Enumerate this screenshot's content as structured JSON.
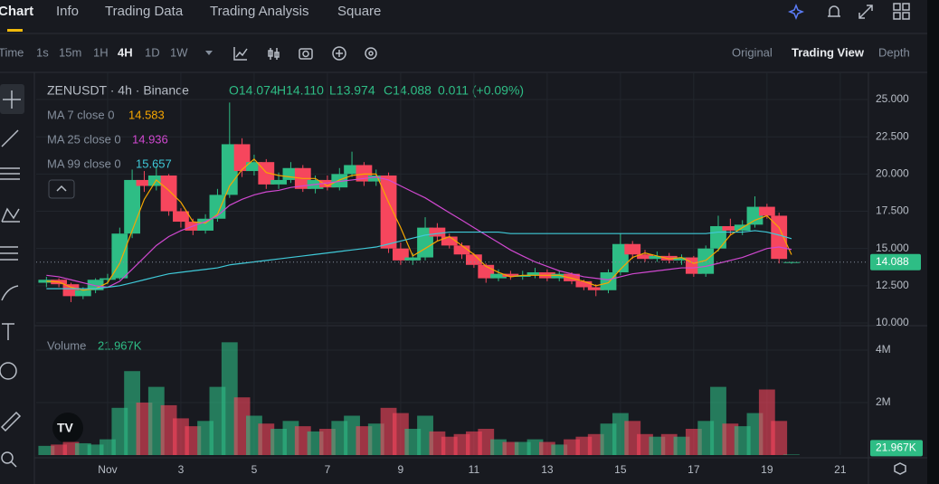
{
  "nav": {
    "tabs": [
      "Chart",
      "Info",
      "Trading Data",
      "Trading Analysis",
      "Square"
    ]
  },
  "toolbar": {
    "intervals": [
      "Time",
      "1s",
      "15m",
      "1H",
      "4H",
      "1D",
      "1W"
    ],
    "views": [
      "Original",
      "Trading View",
      "Depth"
    ]
  },
  "chart_data": {
    "type": "candlestick",
    "title": "ZENUSDT · 4h · Binance",
    "ohlc_text": [
      "O14.074",
      "H14.110",
      "L13.974",
      "C14.088",
      "0.011 (+0.09%)"
    ],
    "up_color": "#2ebd85",
    "down_color": "#f6465d",
    "grid": true,
    "x": [
      -0.67,
      -0.33,
      0,
      0.33,
      0.67,
      1,
      1.33,
      1.67,
      2,
      2.33,
      2.67,
      3,
      3.33,
      3.67,
      4,
      4.33,
      4.67,
      5,
      5.33,
      5.67,
      6,
      6.33,
      6.67,
      7,
      7.33,
      7.67,
      8,
      8.33,
      8.67,
      9,
      9.33,
      9.67,
      10,
      10.33,
      10.67,
      11,
      11.33,
      11.67,
      12,
      12.33,
      12.67,
      13,
      13.33,
      13.67,
      14,
      14.33,
      14.67,
      15,
      15.33,
      15.67,
      16,
      16.33,
      16.67,
      17,
      17.33,
      17.67,
      18,
      18.33,
      18.67,
      19,
      19.33,
      19.67
    ],
    "open": [
      12.7,
      12.9,
      12.6,
      11.8,
      12.2,
      12.9,
      13.0,
      16.0,
      19.6,
      19.2,
      19.9,
      17.5,
      16.8,
      16.2,
      17.0,
      18.6,
      22.0,
      20.2,
      20.8,
      19.3,
      19.6,
      20.4,
      19.0,
      19.6,
      19.1,
      20.0,
      20.6,
      19.5,
      19.9,
      15.0,
      14.2,
      14.4,
      16.4,
      15.8,
      15.2,
      14.6,
      13.9,
      13.0,
      13.3,
      13.1,
      13.2,
      13.4,
      13.0,
      13.3,
      12.8,
      12.4,
      12.2,
      13.4,
      15.3,
      14.6,
      14.3,
      14.5,
      14.2,
      14.4,
      13.3,
      15.0,
      16.5,
      16.2,
      16.6,
      17.8,
      17.2,
      14.074
    ],
    "high": [
      13.1,
      13.0,
      12.7,
      12.4,
      13.0,
      13.3,
      16.4,
      20.3,
      20.2,
      20.5,
      20.0,
      17.7,
      17.0,
      17.3,
      19.0,
      24.8,
      22.4,
      21.3,
      21.0,
      20.1,
      20.8,
      20.6,
      19.9,
      19.9,
      20.4,
      21.5,
      20.8,
      20.3,
      20.1,
      15.4,
      14.7,
      17.1,
      16.7,
      16.0,
      15.4,
      14.7,
      14.0,
      13.6,
      13.5,
      13.5,
      13.7,
      13.6,
      13.5,
      13.4,
      12.9,
      12.6,
      13.6,
      16.0,
      15.5,
      14.9,
      14.8,
      14.7,
      14.6,
      14.5,
      15.2,
      17.2,
      17.0,
      16.9,
      18.5,
      18.0,
      17.4,
      14.11
    ],
    "low": [
      12.4,
      12.4,
      11.4,
      11.6,
      12.0,
      12.6,
      12.9,
      15.7,
      18.8,
      18.9,
      17.2,
      16.4,
      15.9,
      16.0,
      16.8,
      18.4,
      19.8,
      19.9,
      19.0,
      19.0,
      19.4,
      18.8,
      18.7,
      18.9,
      18.9,
      19.8,
      19.2,
      19.2,
      14.7,
      13.9,
      13.9,
      14.2,
      15.5,
      15.0,
      14.3,
      13.7,
      12.7,
      12.8,
      12.9,
      12.9,
      13.0,
      12.8,
      12.8,
      12.6,
      12.2,
      11.8,
      12.0,
      13.2,
      14.3,
      14.1,
      14.1,
      14.0,
      13.9,
      13.1,
      13.1,
      14.8,
      15.9,
      15.9,
      16.4,
      17.0,
      14.0,
      13.974
    ],
    "close": [
      12.9,
      12.6,
      11.8,
      12.2,
      12.9,
      13.0,
      16.0,
      19.6,
      19.2,
      19.9,
      17.5,
      16.8,
      16.2,
      17.0,
      18.6,
      22.0,
      20.2,
      20.8,
      19.3,
      19.6,
      20.4,
      19.0,
      19.6,
      19.1,
      20.0,
      20.6,
      19.5,
      19.9,
      15.0,
      14.2,
      14.4,
      16.4,
      15.8,
      15.2,
      14.6,
      13.9,
      13.0,
      13.3,
      13.1,
      13.2,
      13.4,
      13.0,
      13.3,
      12.8,
      12.4,
      12.2,
      13.4,
      15.3,
      14.6,
      14.3,
      14.5,
      14.2,
      14.4,
      13.3,
      15.0,
      16.5,
      16.2,
      16.6,
      17.8,
      17.2,
      14.3,
      14.088
    ],
    "xlim": [
      -0.95,
      21.77
    ],
    "xticks": [
      {
        "value": 1,
        "label": "Nov"
      },
      3,
      5,
      7,
      9,
      11,
      13,
      15,
      17,
      19,
      21
    ],
    "ylim": [
      10,
      26.52
    ],
    "yticks": [
      {
        "value": 10,
        "label": "10.000"
      },
      {
        "value": 12.5,
        "label": "12.500"
      },
      {
        "value": 15,
        "label": "15.000"
      },
      {
        "value": 17.5,
        "label": "17.500"
      },
      {
        "value": 20,
        "label": "20.000"
      },
      {
        "value": 22.5,
        "label": "22.500"
      },
      {
        "value": 25,
        "label": "25.000"
      }
    ],
    "ma": [
      {
        "name": "MA 7 close 0",
        "color": "#f7a600",
        "values": [
          12.8,
          12.75,
          12.4,
          12.2,
          12.3,
          12.7,
          14.0,
          16.2,
          18.3,
          19.6,
          18.9,
          18.1,
          16.8,
          16.7,
          17.3,
          19.2,
          20.3,
          21.0,
          20.1,
          19.9,
          19.8,
          19.7,
          19.7,
          19.2,
          19.6,
          19.9,
          20.0,
          20.0,
          18.1,
          16.4,
          14.5,
          15.0,
          15.5,
          15.8,
          15.2,
          14.6,
          13.8,
          13.4,
          13.1,
          13.2,
          13.2,
          13.2,
          13.2,
          13.0,
          12.8,
          12.5,
          12.7,
          13.6,
          14.4,
          14.7,
          14.5,
          14.3,
          14.4,
          14.0,
          14.2,
          14.9,
          15.9,
          16.4,
          16.9,
          17.2,
          16.4,
          14.583
        ]
      },
      {
        "name": "MA 25 close 0",
        "color": "#d048d0",
        "values": [
          13.2,
          13.1,
          12.9,
          12.7,
          12.5,
          12.4,
          12.8,
          13.6,
          14.4,
          15.2,
          15.8,
          16.2,
          16.5,
          16.8,
          17.2,
          17.9,
          18.3,
          18.6,
          18.8,
          18.9,
          19.1,
          19.2,
          19.3,
          19.4,
          19.5,
          19.6,
          19.7,
          19.8,
          19.6,
          19.2,
          18.8,
          18.4,
          17.9,
          17.4,
          16.9,
          16.4,
          15.9,
          15.4,
          14.9,
          14.5,
          14.1,
          13.8,
          13.5,
          13.3,
          13.1,
          13.0,
          12.9,
          13.1,
          13.3,
          13.4,
          13.5,
          13.6,
          13.7,
          13.7,
          13.8,
          14.0,
          14.2,
          14.4,
          14.7,
          15.0,
          15.1,
          14.936
        ]
      },
      {
        "name": "MA 99 close 0",
        "color": "#3fc9d8",
        "values": [
          12.3,
          12.3,
          12.3,
          12.3,
          12.3,
          12.4,
          12.5,
          12.7,
          12.9,
          13.1,
          13.3,
          13.4,
          13.5,
          13.6,
          13.7,
          13.9,
          14.0,
          14.1,
          14.2,
          14.3,
          14.4,
          14.5,
          14.6,
          14.7,
          14.8,
          14.9,
          15.0,
          15.1,
          15.3,
          15.5,
          15.7,
          15.9,
          16.0,
          16.1,
          16.1,
          16.1,
          16.1,
          16.1,
          16.0,
          16.0,
          16.0,
          16.0,
          16.0,
          16.0,
          16.0,
          16.0,
          16.0,
          16.0,
          16.0,
          16.0,
          16.0,
          16.0,
          16.0,
          16.0,
          16.0,
          16.1,
          16.1,
          16.1,
          16.2,
          16.1,
          15.9,
          15.657
        ]
      }
    ],
    "volume": {
      "name": "Volume",
      "value_text": "21.967K",
      "values": [
        350000,
        400000,
        500000,
        450000,
        400000,
        600000,
        1800000,
        3200000,
        2000000,
        2600000,
        1900000,
        1400000,
        1100000,
        1300000,
        2600000,
        4300000,
        2200000,
        1500000,
        1200000,
        1000000,
        1300000,
        1100000,
        900000,
        1000000,
        1300000,
        1500000,
        1100000,
        1200000,
        1800000,
        1600000,
        1000000,
        1500000,
        900000,
        700000,
        800000,
        900000,
        1000000,
        600000,
        500000,
        500000,
        600000,
        500000,
        400000,
        600000,
        700000,
        800000,
        1200000,
        1600000,
        1300000,
        800000,
        700000,
        800000,
        700000,
        1000000,
        1300000,
        2600000,
        1200000,
        1100000,
        1600000,
        2500000,
        1300000,
        21967
      ],
      "ylim": [
        0,
        4760000
      ],
      "yticks": [
        {
          "value": 2000000,
          "label": "2M"
        },
        {
          "value": 4000000,
          "label": "4M"
        }
      ]
    }
  }
}
